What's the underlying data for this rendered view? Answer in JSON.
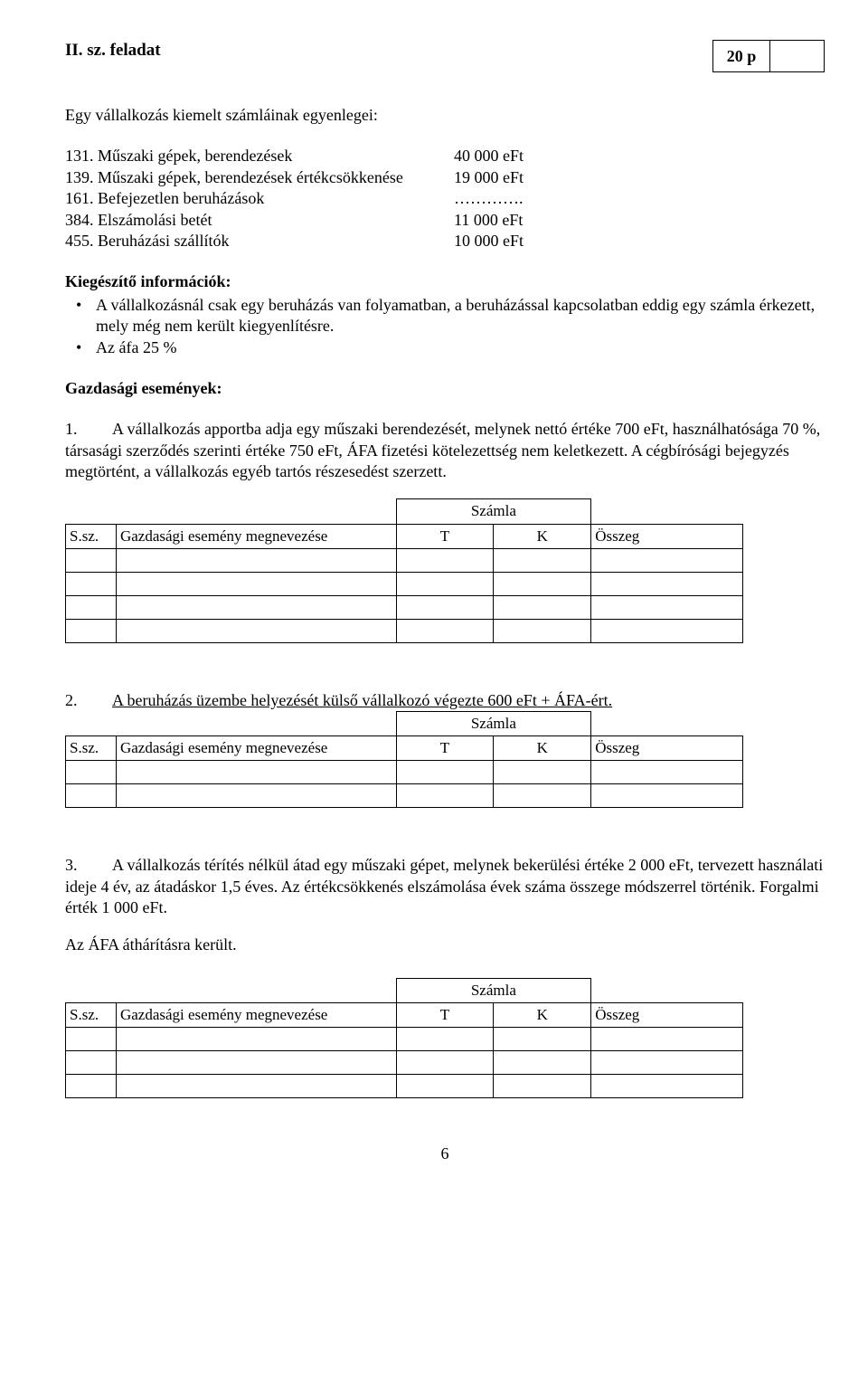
{
  "header": {
    "task_title": "II. sz. feladat",
    "score_label": "20 p"
  },
  "intro": "Egy vállalkozás kiemelt számláinak egyenlegei:",
  "accounts": [
    {
      "label": "131. Műszaki gépek, berendezések",
      "value": "40 000 eFt"
    },
    {
      "label": "139. Műszaki gépek, berendezések értékcsökkenése",
      "value": "19 000 eFt"
    },
    {
      "label": "161. Befejezetlen beruházások",
      "value": "…………."
    },
    {
      "label": "384. Elszámolási betét",
      "value": "11 000 eFt"
    },
    {
      "label": "455. Beruházási szállítók",
      "value": "10 000 eFt"
    }
  ],
  "supp": {
    "title": "Kiegészítő információk:",
    "items": [
      "A vállalkozásnál csak egy beruházás van folyamatban, a beruházással kapcsolatban eddig egy számla érkezett, mely még nem került kiegyenlítésre.",
      "Az áfa 25 %"
    ]
  },
  "events_title": "Gazdasági események:",
  "events": [
    {
      "num": "1.",
      "text": "A vállalkozás apportba adja egy műszaki berendezését, melynek nettó értéke 700 eFt, használhatósága 70 %, társasági szerződés szerinti értéke 750 eFt, ÁFA fizetési kötelezettség nem keletkezett. A cégbírósági bejegyzés megtörtént, a vállalkozás egyéb tartós részesedést szerzett.",
      "blank_rows": 4
    },
    {
      "num": "2.",
      "text_underlined": "A beruházás üzembe helyezését külső vállalkozó végezte 600 eFt + ÁFA-ért.",
      "blank_rows": 2
    },
    {
      "num": "3.",
      "text": "A vállalkozás térítés nélkül átad egy műszaki gépet, melynek bekerülési értéke 2 000 eFt, tervezett használati ideje 4 év, az átadáskor 1,5 éves. Az értékcsökkenés elszámolása évek száma összege módszerrel történik. Forgalmi érték 1 000 eFt.",
      "tail": "Az ÁFA áthárításra került.",
      "blank_rows": 3
    }
  ],
  "table": {
    "szamla": "Számla",
    "ssz": "S.sz.",
    "name": "Gazdasági esemény megnevezése",
    "t": "T",
    "k": "K",
    "sum": "Összeg"
  },
  "page_number": "6"
}
